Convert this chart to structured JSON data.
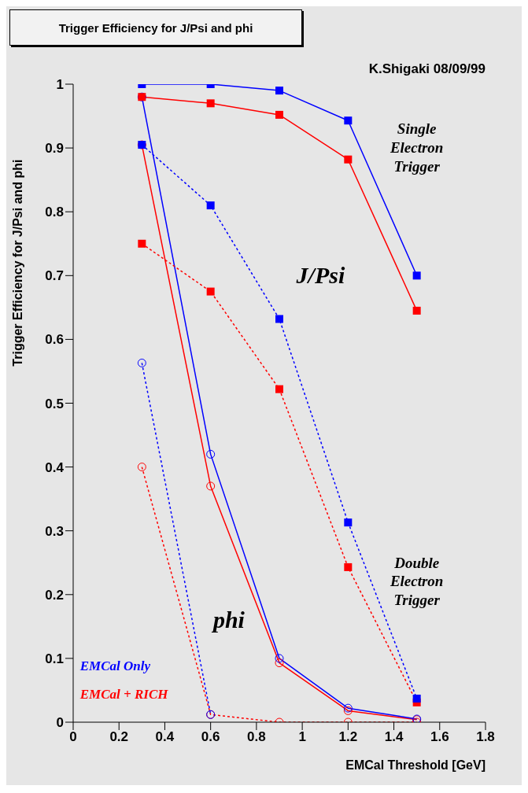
{
  "chart_data": {
    "type": "line",
    "title": "Trigger Efficiency for J/Psi and phi",
    "xlabel": "EMCal Threshold [GeV]",
    "ylabel": "Trigger Efficiency for J/Psi and phi",
    "x": [
      0.3,
      0.6,
      0.9,
      1.2,
      1.5
    ],
    "series": [
      {
        "name": "EMCal Only",
        "color": "#0000ff",
        "values": [
          1.0,
          1.0,
          0.99,
          0.943,
          0.7
        ],
        "marker": "square",
        "line_style": "solid"
      },
      {
        "name": "EMCal + RICH",
        "color": "#ff0000",
        "values": [
          0.98,
          0.97,
          0.952,
          0.882,
          0.645
        ],
        "marker": "square",
        "line_style": "solid"
      },
      {
        "color": "#0000ff",
        "values": [
          0.905,
          0.81,
          0.632,
          0.313,
          0.037
        ],
        "marker": "square",
        "line_style": "dotted"
      },
      {
        "color": "#ff0000",
        "values": [
          0.75,
          0.675,
          0.522,
          0.243,
          0.031
        ],
        "marker": "square",
        "line_style": "dotted"
      },
      {
        "color": "#0000ff",
        "values": [
          0.98,
          0.42,
          0.1,
          0.022,
          0.005
        ],
        "marker": "circle",
        "line_style": "solid"
      },
      {
        "color": "#ff0000",
        "values": [
          0.905,
          0.37,
          0.093,
          0.018,
          0.004
        ],
        "marker": "circle",
        "line_style": "solid"
      },
      {
        "color": "#0000ff",
        "values": [
          0.563,
          0.012,
          null,
          null,
          null
        ],
        "marker": "circle",
        "line_style": "dotted"
      },
      {
        "color": "#ff0000",
        "values": [
          0.4,
          0.012,
          0,
          0,
          0
        ],
        "marker": "circle",
        "line_style": "dotted"
      }
    ],
    "xlim": [
      0,
      1.8
    ],
    "xticks": [
      0,
      0.2,
      0.4,
      0.6,
      0.8,
      1,
      1.2,
      1.4,
      1.6,
      1.8
    ],
    "ylim": [
      0,
      1
    ],
    "yticks": [
      0,
      0.1,
      0.2,
      0.3,
      0.4,
      0.5,
      0.6,
      0.7,
      0.8,
      0.9,
      1
    ],
    "grid": false,
    "legend": "bottom left",
    "annotations": [
      "K.Shigaki 08/09/99",
      "Single Electron Trigger",
      "J/Psi",
      "Double Electron Trigger",
      "phi"
    ]
  }
}
